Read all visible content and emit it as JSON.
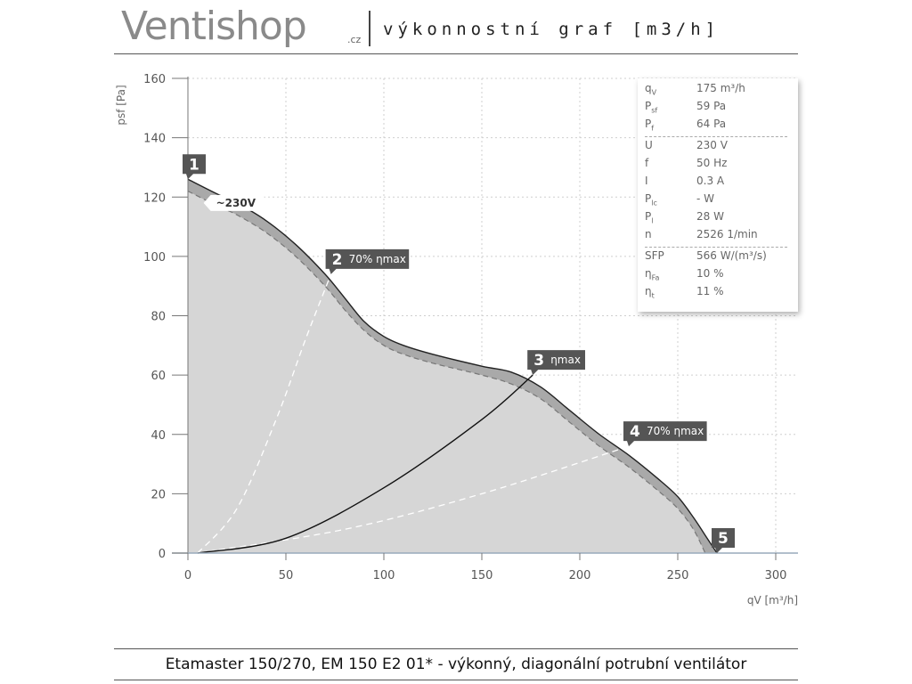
{
  "header": {
    "logo": "Ventishop",
    "logo_suffix": ".cz",
    "title": "výkonnostní graf [m3/h]"
  },
  "footer": {
    "text": "Etamaster 150/270, EM 150 E2 01* - výkonný, diagonální potrubní ventilátor"
  },
  "info": {
    "group1": [
      {
        "symbol": "q",
        "sub": "V",
        "value": "175 m³/h"
      },
      {
        "symbol": "P",
        "sub": "sf",
        "value": "59 Pa"
      },
      {
        "symbol": "P",
        "sub": "f",
        "value": "64 Pa"
      }
    ],
    "group2": [
      {
        "symbol": "U",
        "sub": "",
        "value": "230 V"
      },
      {
        "symbol": "f",
        "sub": "",
        "value": "50 Hz"
      },
      {
        "symbol": "I",
        "sub": "",
        "value": "0.3 A"
      },
      {
        "symbol": "P",
        "sub": "lc",
        "value": "- W"
      },
      {
        "symbol": "P",
        "sub": "l",
        "value": "28 W"
      },
      {
        "symbol": "n",
        "sub": "",
        "value": "2526 1/min"
      }
    ],
    "group3": [
      {
        "symbol": "SFP",
        "sub": "",
        "value": "566 W/(m³/s)"
      },
      {
        "symbol": "η",
        "sub": "Fa",
        "value": "10 %"
      },
      {
        "symbol": "η",
        "sub": "t",
        "value": "11 %"
      }
    ]
  },
  "chart_data": {
    "type": "line",
    "xlabel": "qV [m³/h]",
    "ylabel": "psf [Pa]",
    "xlim": [
      0,
      300
    ],
    "ylim": [
      0,
      160
    ],
    "x_ticks": [
      0,
      50,
      100,
      150,
      200,
      250,
      300
    ],
    "y_ticks": [
      0,
      20,
      40,
      60,
      80,
      100,
      120,
      140,
      160
    ],
    "grid": true,
    "series": [
      {
        "role": "outer-curve",
        "x": [
          0,
          15,
          25,
          40,
          55,
          70,
          80,
          90,
          100,
          110,
          125,
          150,
          165,
          180,
          195,
          210,
          225,
          240,
          250,
          258,
          265,
          270
        ],
        "y": [
          126,
          121,
          118,
          112,
          104,
          94,
          86,
          78,
          73,
          70,
          67,
          63,
          61,
          56,
          48,
          40,
          33,
          25,
          19,
          12,
          5,
          0
        ]
      },
      {
        "role": "inner-curve",
        "x": [
          0,
          15,
          25,
          40,
          55,
          70,
          80,
          90,
          100,
          110,
          125,
          150,
          165,
          180,
          195,
          210,
          225,
          240,
          250,
          258,
          264
        ],
        "y": [
          122,
          117,
          114,
          108,
          100,
          90,
          82,
          75,
          70,
          67,
          64,
          60,
          57,
          52,
          44,
          36,
          29,
          21,
          15,
          8,
          0
        ]
      },
      {
        "role": "system-curve-eta-max",
        "x": [
          5,
          50,
          100,
          150,
          176
        ],
        "y": [
          0,
          5,
          22,
          45,
          60
        ]
      },
      {
        "role": "system-curve-70-left",
        "x": [
          5,
          25,
          45,
          60,
          73
        ],
        "y": [
          0,
          15,
          45,
          72,
          94
        ]
      },
      {
        "role": "system-curve-70-right",
        "x": [
          5,
          80,
          150,
          225
        ],
        "y": [
          0,
          8,
          20,
          36
        ]
      }
    ],
    "annotations": [
      {
        "num": "1",
        "text": "",
        "x": 0,
        "y": 126
      },
      {
        "num": "",
        "text": "~230V",
        "x": 8,
        "y": 118
      },
      {
        "num": "2",
        "text": "70% ηmax",
        "x": 73,
        "y": 94
      },
      {
        "num": "3",
        "text": "ηmax",
        "x": 176,
        "y": 60
      },
      {
        "num": "4",
        "text": "70% ηmax",
        "x": 225,
        "y": 36
      },
      {
        "num": "5",
        "text": "",
        "x": 270,
        "y": 0
      }
    ]
  }
}
